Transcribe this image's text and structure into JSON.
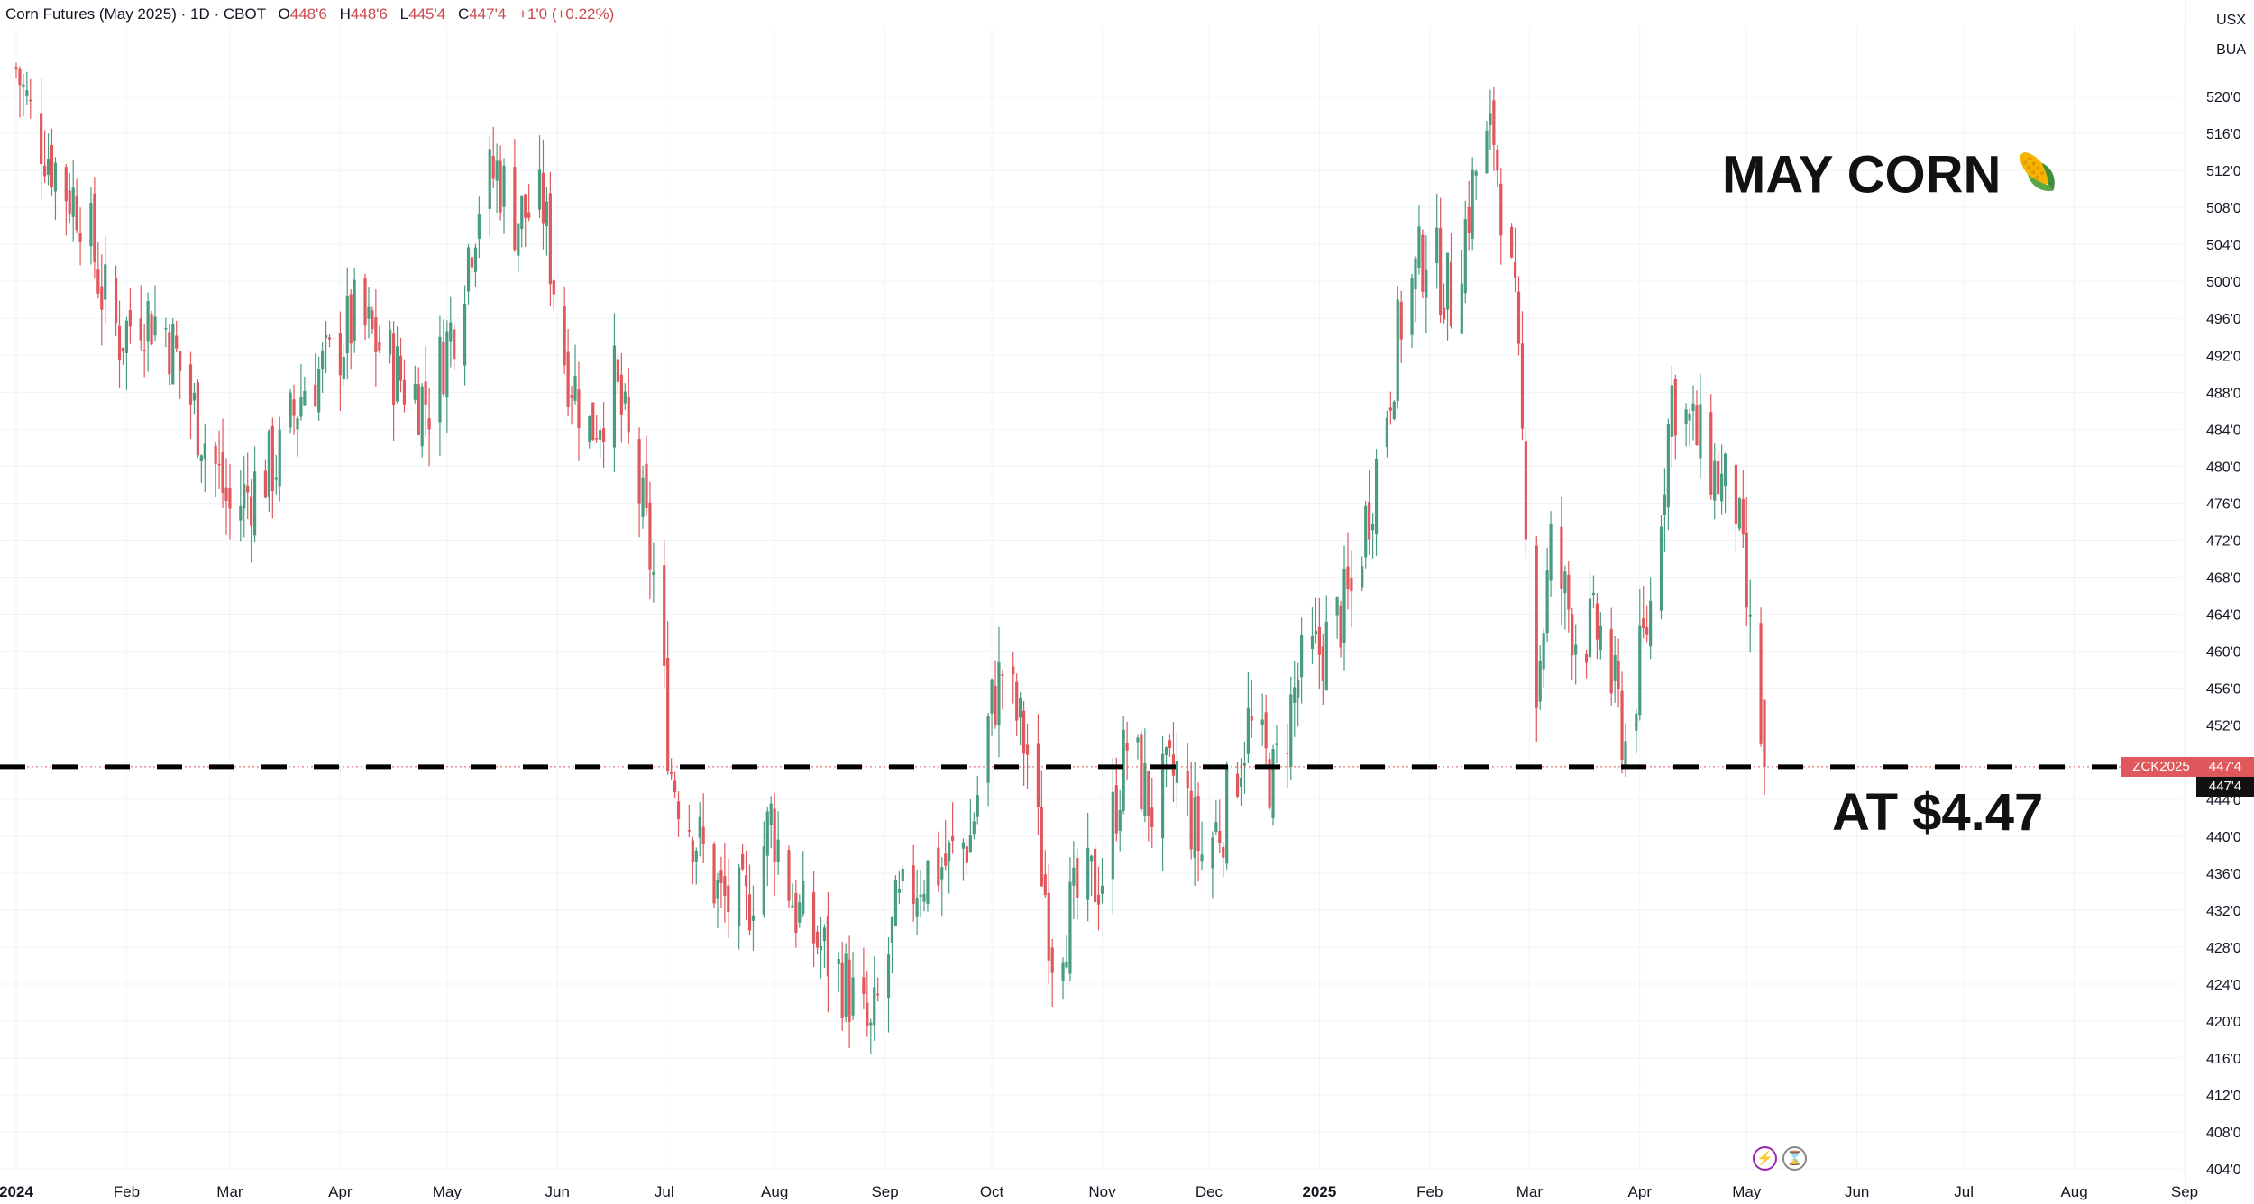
{
  "legend": {
    "symbol": "Corn Futures (May 2025) · 1D · CBOT",
    "o_label": "O",
    "o": "448'6",
    "h_label": "H",
    "h": "448'6",
    "l_label": "L",
    "l": "445'4",
    "c_label": "C",
    "c": "447'4",
    "change": "+1'0 (+0.22%)"
  },
  "currency": {
    "line1": "USX",
    "line2": "BUA"
  },
  "annotations": {
    "title": "MAY CORN",
    "title_icon": "corn-icon",
    "price_note": "AT $4.47"
  },
  "price_tags": {
    "symbol": "ZCK2025",
    "last": "447'4",
    "close": "447'4"
  },
  "bottom_icons": [
    "bolt-icon",
    "hourglass-icon"
  ],
  "colors": {
    "up": "#4a9c80",
    "down": "#e0575c",
    "grid": "#f0f3fa",
    "text": "#131722"
  },
  "chart_data": {
    "type": "candlestick",
    "instrument": "ZCK2025",
    "interval": "1D",
    "x_start": "2024-01-01",
    "x_end": "2025-09-01",
    "x_ticks": [
      {
        "date": "2024-01-01",
        "label": "2024"
      },
      {
        "date": "2024-02-01",
        "label": "Feb"
      },
      {
        "date": "2024-03-01",
        "label": "Mar"
      },
      {
        "date": "2024-04-01",
        "label": "Apr"
      },
      {
        "date": "2024-05-01",
        "label": "May"
      },
      {
        "date": "2024-06-01",
        "label": "Jun"
      },
      {
        "date": "2024-07-01",
        "label": "Jul"
      },
      {
        "date": "2024-08-01",
        "label": "Aug"
      },
      {
        "date": "2024-09-01",
        "label": "Sep"
      },
      {
        "date": "2024-10-01",
        "label": "Oct"
      },
      {
        "date": "2024-11-01",
        "label": "Nov"
      },
      {
        "date": "2024-12-01",
        "label": "Dec"
      },
      {
        "date": "2025-01-01",
        "label": "2025"
      },
      {
        "date": "2025-02-01",
        "label": "Feb"
      },
      {
        "date": "2025-03-01",
        "label": "Mar"
      },
      {
        "date": "2025-04-01",
        "label": "Apr"
      },
      {
        "date": "2025-05-01",
        "label": "May"
      },
      {
        "date": "2025-06-01",
        "label": "Jun"
      },
      {
        "date": "2025-07-01",
        "label": "Jul"
      },
      {
        "date": "2025-08-01",
        "label": "Aug"
      },
      {
        "date": "2025-09-01",
        "label": "Sep"
      }
    ],
    "y_ticks": [
      "520'0",
      "516'0",
      "512'0",
      "508'0",
      "504'0",
      "500'0",
      "496'0",
      "492'0",
      "488'0",
      "484'0",
      "480'0",
      "476'0",
      "472'0",
      "468'0",
      "464'0",
      "460'0",
      "456'0",
      "452'0",
      "444'0",
      "440'0",
      "436'0",
      "432'0",
      "428'0",
      "424'0",
      "420'0",
      "416'0",
      "412'0",
      "408'0",
      "404'0"
    ],
    "y_range": [
      403,
      524
    ],
    "reference_line": 447.5,
    "close_path": [
      [
        "2024-01-01",
        523
      ],
      [
        "2024-01-05",
        518
      ],
      [
        "2024-01-10",
        514
      ],
      [
        "2024-01-15",
        510
      ],
      [
        "2024-01-20",
        508
      ],
      [
        "2024-01-25",
        499
      ],
      [
        "2024-01-30",
        494
      ],
      [
        "2024-02-05",
        497
      ],
      [
        "2024-02-12",
        495
      ],
      [
        "2024-02-20",
        486
      ],
      [
        "2024-02-26",
        480
      ],
      [
        "2024-03-01",
        475
      ],
      [
        "2024-03-08",
        478
      ],
      [
        "2024-03-15",
        481
      ],
      [
        "2024-03-22",
        489
      ],
      [
        "2024-03-29",
        491
      ],
      [
        "2024-04-05",
        496
      ],
      [
        "2024-04-12",
        493
      ],
      [
        "2024-04-19",
        489
      ],
      [
        "2024-04-26",
        487
      ],
      [
        "2024-05-03",
        496
      ],
      [
        "2024-05-10",
        509
      ],
      [
        "2024-05-15",
        512
      ],
      [
        "2024-05-20",
        507
      ],
      [
        "2024-05-28",
        508
      ],
      [
        "2024-06-03",
        492
      ],
      [
        "2024-06-10",
        484
      ],
      [
        "2024-06-17",
        489
      ],
      [
        "2024-06-24",
        477
      ],
      [
        "2024-06-28",
        468
      ],
      [
        "2024-07-03",
        447
      ],
      [
        "2024-07-10",
        440
      ],
      [
        "2024-07-17",
        433
      ],
      [
        "2024-07-24",
        432
      ],
      [
        "2024-07-31",
        442
      ],
      [
        "2024-08-07",
        432
      ],
      [
        "2024-08-14",
        428
      ],
      [
        "2024-08-21",
        424
      ],
      [
        "2024-08-28",
        418
      ],
      [
        "2024-09-04",
        431
      ],
      [
        "2024-09-11",
        436
      ],
      [
        "2024-09-18",
        437
      ],
      [
        "2024-09-25",
        440
      ],
      [
        "2024-10-01",
        454
      ],
      [
        "2024-10-04",
        458
      ],
      [
        "2024-10-11",
        449
      ],
      [
        "2024-10-18",
        428
      ],
      [
        "2024-10-25",
        433
      ],
      [
        "2024-11-01",
        436
      ],
      [
        "2024-11-08",
        450
      ],
      [
        "2024-11-15",
        443
      ],
      [
        "2024-11-22",
        447
      ],
      [
        "2024-11-29",
        438
      ],
      [
        "2024-12-05",
        442
      ],
      [
        "2024-12-12",
        452
      ],
      [
        "2024-12-19",
        446
      ],
      [
        "2024-12-26",
        457
      ],
      [
        "2025-01-03",
        461
      ],
      [
        "2025-01-10",
        466
      ],
      [
        "2025-01-17",
        480
      ],
      [
        "2025-01-24",
        496
      ],
      [
        "2025-01-31",
        504
      ],
      [
        "2025-02-07",
        498
      ],
      [
        "2025-02-14",
        512
      ],
      [
        "2025-02-19",
        516
      ],
      [
        "2025-02-25",
        496
      ],
      [
        "2025-03-03",
        456
      ],
      [
        "2025-03-07",
        471
      ],
      [
        "2025-03-14",
        462
      ],
      [
        "2025-03-21",
        462
      ],
      [
        "2025-03-28",
        450
      ],
      [
        "2025-04-04",
        465
      ],
      [
        "2025-04-10",
        488
      ],
      [
        "2025-04-17",
        483
      ],
      [
        "2025-04-24",
        478
      ],
      [
        "2025-04-28",
        476
      ],
      [
        "2025-05-02",
        461
      ],
      [
        "2025-05-06",
        447.5
      ]
    ],
    "last": {
      "date": "2025-05-06",
      "open": 448.75,
      "high": 448.75,
      "low": 445.5,
      "close": 447.5
    }
  }
}
